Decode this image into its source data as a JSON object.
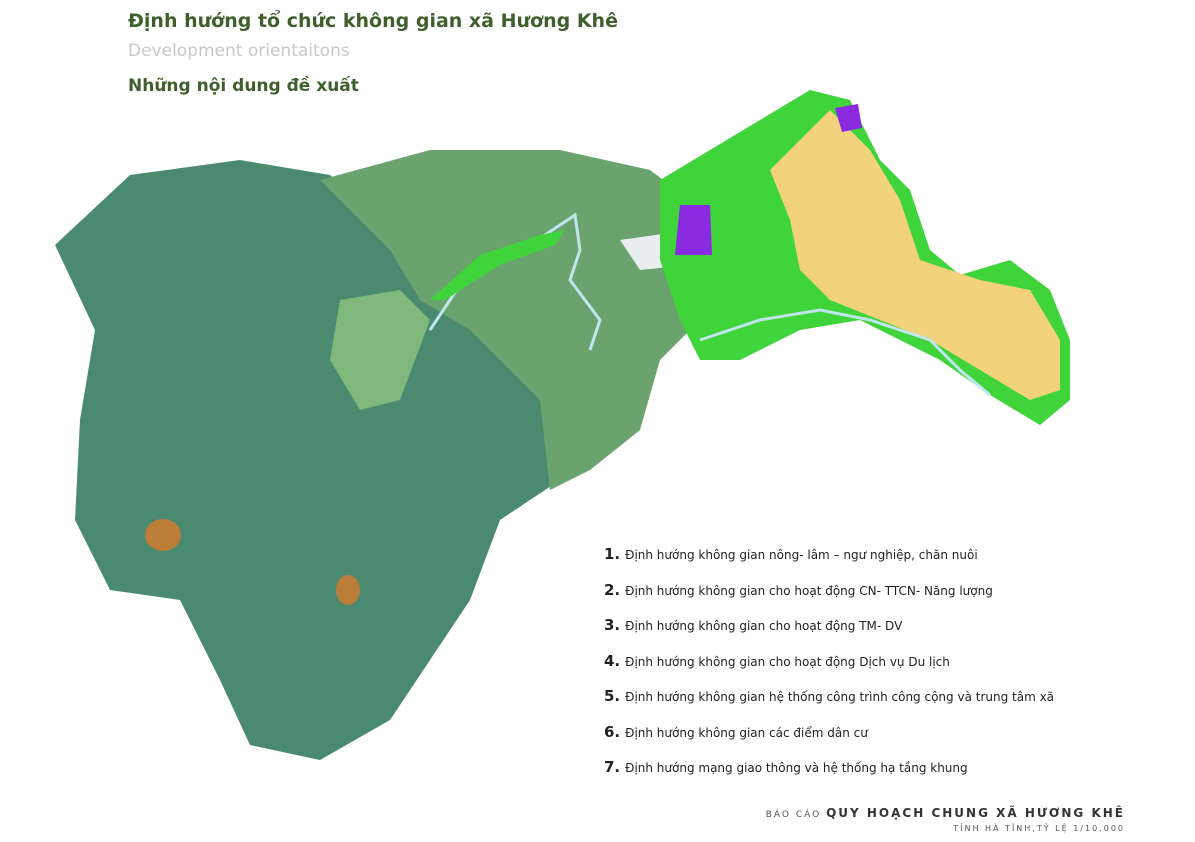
{
  "header": {
    "title": "Định hướng tổ chức không gian xã Hương Khê",
    "subtitle": "Development orientaitons",
    "section": "Những nội dung đề xuất"
  },
  "items": [
    {
      "number": "1.",
      "text": "Định hướng không gian nông- lâm – ngư nghiệp, chăn nuôi"
    },
    {
      "number": "2.",
      "text": "Định hướng không gian cho hoạt động CN- TTCN- Năng lượng"
    },
    {
      "number": "3.",
      "text": "Định hướng không gian cho  hoạt động TM- DV"
    },
    {
      "number": "4.",
      "text": "Định hướng không gian cho hoạt động Dịch vụ Du lịch"
    },
    {
      "number": "5.",
      "text": "Định hướng không gian hệ thống công trình công cộng và trung tâm xã"
    },
    {
      "number": "6.",
      "text": "Định hướng không gian các điểm dân cư"
    },
    {
      "number": "7.",
      "text": "Định hướng mạng giao thông và hệ thống hạ tầng khung"
    }
  ],
  "footer": {
    "prefix": "BÁO CÁO",
    "title": "QUY HOẠCH CHUNG XÃ HƯƠNG KHÊ",
    "note": "TỈNH HÀ TĨNH,TỶ LỆ 1/10.000"
  }
}
